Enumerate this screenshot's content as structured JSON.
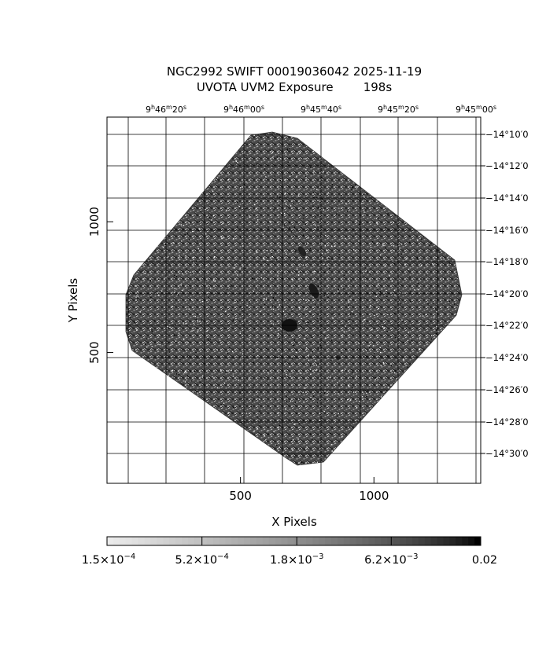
{
  "figure": {
    "title_line1": "NGC2992 SWIFT 00019036042 2025-11-19",
    "title_line2": "UVOTA UVM2 Exposure        198s",
    "xlabel": "X Pixels",
    "ylabel": "Y Pixels",
    "x_ticks": [
      {
        "label": "500",
        "value": 500
      },
      {
        "label": "1000",
        "value": 1000
      }
    ],
    "y_ticks": [
      {
        "label": "1000",
        "value": 1000
      },
      {
        "label": "500",
        "value": 500
      }
    ],
    "x_range": [
      0,
      1400
    ],
    "y_range": [
      0,
      1400
    ],
    "ra_ticks": [
      {
        "h": "9",
        "m": "46",
        "s": "20"
      },
      {
        "h": "9",
        "m": "46",
        "s": "00"
      },
      {
        "h": "9",
        "m": "45",
        "s": "40"
      },
      {
        "h": "9",
        "m": "45",
        "s": "20"
      },
      {
        "h": "9",
        "m": "45",
        "s": "00"
      }
    ],
    "dec_ticks": [
      "−14°10′0",
      "−14°12′0",
      "−14°14′0",
      "−14°16′0",
      "−14°18′0",
      "−14°20′0",
      "−14°22′0",
      "−14°24′0",
      "−14°26′0",
      "−14°28′0",
      "−14°30′0"
    ],
    "colorbar": {
      "labels": [
        {
          "mant": "1.5×10",
          "exp": "−4"
        },
        {
          "mant": "5.2×10",
          "exp": "−4"
        },
        {
          "mant": "1.8×10",
          "exp": "−3"
        },
        {
          "mant": "6.2×10",
          "exp": "−3"
        },
        {
          "mant": "0.02",
          "exp": ""
        }
      ],
      "scale": "log",
      "min": 0.00015,
      "max": 0.02
    },
    "colors": {
      "background": "#ffffff",
      "ink": "#000000"
    }
  }
}
